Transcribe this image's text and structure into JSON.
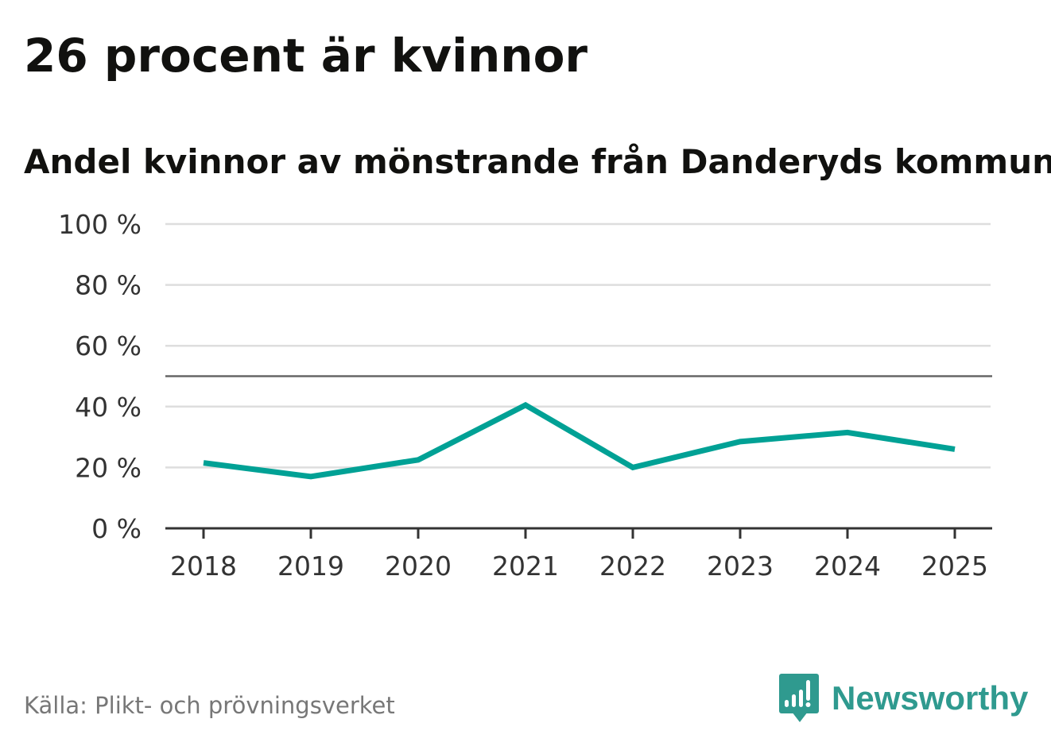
{
  "title": "26 procent är kvinnor",
  "subtitle": "Andel kvinnor av mönstrande från Danderyds kommun",
  "source": "Källa: Plikt- och prövningsverket",
  "logo": {
    "text": "Newsworthy",
    "icon": "newsworthy-logo-icon",
    "color": "#2f9a8f"
  },
  "chart_data": {
    "type": "line",
    "x": [
      "2018",
      "2019",
      "2020",
      "2021",
      "2022",
      "2023",
      "2024",
      "2025"
    ],
    "series": [
      {
        "values": [
          21.5,
          17,
          22.5,
          40.5,
          20,
          28.5,
          31.5,
          26
        ],
        "color": "#00a195"
      }
    ],
    "y_ticks": [
      0,
      20,
      40,
      60,
      80,
      100
    ],
    "y_tick_labels": [
      "0 %",
      "20 %",
      "40 %",
      "60 %",
      "80 %",
      "100 %"
    ],
    "ylim": [
      0,
      100
    ],
    "reference_line": 50,
    "grid": true,
    "legend": "none"
  }
}
